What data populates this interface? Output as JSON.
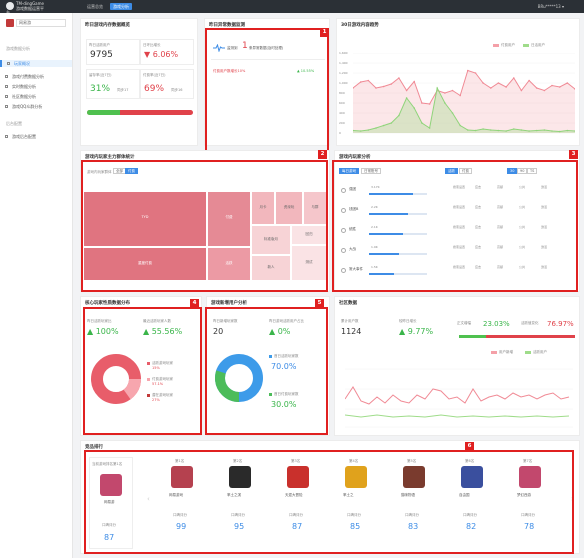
{
  "app": {
    "title": "TM-dingGame",
    "subtitle": "游戏数据运营平台",
    "tabs": [
      "运营总览",
      "游戏分析"
    ],
    "user": "BRu*****13 ▾"
  },
  "sidebar": {
    "game": "网易游",
    "groups": [
      {
        "title": "游戏数据分析",
        "items": [
          "玩家概况",
          "游戏付费数据分析",
          "实时数据分析",
          "社区数据分析",
          "游戏QQ众群分析"
        ]
      },
      {
        "title": "后台配置",
        "items": [
          "游戏后台配置"
        ]
      }
    ]
  },
  "overview": {
    "title": "昨日游戏内存数据概览",
    "dau_label": "昨日活跃用户",
    "dau": "9795",
    "dau_delta_label": "日环比增长",
    "dau_delta": "▼ 6.06%",
    "retention_label": "留存率(近7日)",
    "retention_sub": "日活跃率(昨日)",
    "retention": "31%",
    "retention_note": "同步17",
    "pay_label": "付费率(近7日)",
    "pay_sub": "日付费率(昨日)",
    "pay": "69%",
    "pay_note": "同步16"
  },
  "realtime": {
    "title": "昨日异常数据监测",
    "monitor": "监测到",
    "count": "1",
    "text": "条异常数据(及时处理)",
    "row_name": "付费用户数增长10%",
    "row_val": "▲ 10.55%"
  },
  "trend": {
    "title": "30日游戏内容趋势",
    "legend": [
      "付费用户",
      "日活用户"
    ],
    "yticks": [
      "1,600",
      "1,400",
      "1,200",
      "1,000",
      "800",
      "600",
      "400",
      "200",
      "0"
    ]
  },
  "chart_data": {
    "type": "line",
    "series": [
      {
        "name": "付费用户",
        "values": [
          900,
          1020,
          1050,
          900,
          930,
          980,
          1100,
          850,
          1030,
          600,
          580,
          850,
          800,
          850,
          750,
          1250,
          1200,
          1000,
          900,
          1000,
          920,
          1100,
          850,
          1050,
          900,
          850,
          950,
          920,
          1000,
          880
        ]
      },
      {
        "name": "日活用户",
        "values": [
          50,
          40,
          60,
          100,
          150,
          200,
          350,
          700,
          500,
          200,
          100,
          900,
          600,
          400,
          150,
          60,
          50,
          80,
          60,
          50,
          40,
          80,
          60,
          40,
          50,
          60,
          40,
          30,
          50,
          40
        ]
      }
    ],
    "ylim": [
      0,
      1600
    ]
  },
  "spread": {
    "title": "游戏内玩家主力群体统计",
    "filter_label": "游戏内玩家群体",
    "pills": [
      "全部",
      "付费"
    ],
    "cells": [
      "TYD",
      "付费",
      "月卡",
      "资深玩",
      "与群",
      "活跃",
      "回归",
      "标准版月",
      "测试",
      "重度付费",
      "新人"
    ]
  },
  "interest": {
    "title": "游戏内玩家分析",
    "pills_a": [
      "每日游戏",
      "日常账号"
    ],
    "pills_b": [
      "活跃",
      "付费"
    ],
    "pills_c": [
      "30",
      "90",
      "TS"
    ],
    "rows": [
      {
        "name": "强团",
        "val": "3.17K"
      },
      {
        "name": "钱团B",
        "val": "2.2K"
      },
      {
        "name": "统胜",
        "val": "2.1K"
      },
      {
        "name": "大战",
        "val": "1.9K"
      },
      {
        "name": "常大事件",
        "val": "1.5K"
      }
    ],
    "cols": [
      "搜索设置",
      "应击",
      "高额",
      "公共",
      "激活"
    ]
  },
  "core": {
    "title": "核心玩家性质数据分布",
    "a_label": "昨日活跃玩家比",
    "a": "▲ 100%",
    "b_label": "最近活跃玩家人数",
    "b": "▲ 55.56%",
    "legend": [
      "活跃游戏玩家",
      "付费游戏玩家",
      "潜在游戏玩家"
    ],
    "pct": [
      "15%",
      "57.1%",
      "27%"
    ]
  },
  "acq": {
    "title": "游戏新增用户分析",
    "a_label": "昨日新增玩家数",
    "a": "20",
    "b_label": "昨日游戏活跃用户占比",
    "b": "▲ 0%",
    "ring_a": "70.0%",
    "ring_b": "30.0%",
    "ring_a_label": "首日活跃玩家数",
    "ring_b_label": "首日付费玩家数"
  },
  "flow": {
    "title": "社区数据",
    "a_label": "累计用户数",
    "a": "1124",
    "b_label": "较昨日增长",
    "b": "▲ 9.77%",
    "c_label": "正文增幅",
    "c": "23.03%",
    "d_label": "活跃值变化",
    "d": "76.97%",
    "legend": [
      "用户新增",
      "活跃用户"
    ]
  },
  "ranking": {
    "title": "竞品排行",
    "self_label": "当前游戏排名第1名",
    "self_name": "网易游",
    "self_score_label": "口碑评分",
    "self_score": "87",
    "items": [
      {
        "rank": "第1名",
        "name": "网易游戏",
        "score": "99",
        "color": "#b5414f"
      },
      {
        "rank": "第2名",
        "name": "率土之滨",
        "score": "95",
        "color": "#2a2a2a"
      },
      {
        "rank": "第3名",
        "name": "天涯大冒险",
        "score": "87",
        "color": "#c9302c"
      },
      {
        "rank": "第4名",
        "name": "率土之",
        "score": "85",
        "color": "#e0a21c"
      },
      {
        "rank": "第5名",
        "name": "猫咪物语",
        "score": "83",
        "color": "#7a3b2e"
      },
      {
        "rank": "第6名",
        "name": "自由国",
        "score": "82",
        "color": "#3a4f9e"
      },
      {
        "rank": "第7名",
        "name": "梦幻西游",
        "score": "78",
        "color": "#c2486d"
      }
    ],
    "score_label": "口碑评分"
  }
}
